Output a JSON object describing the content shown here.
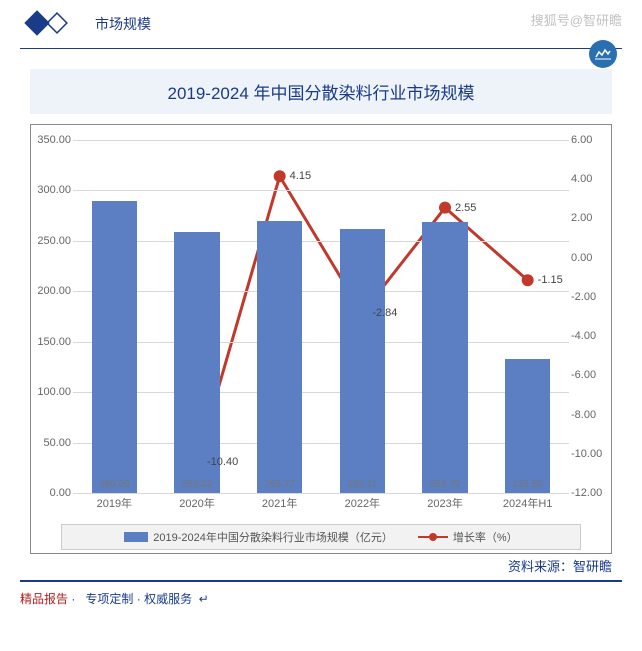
{
  "header": {
    "title": "市场规模",
    "watermark": "搜狐号@智研瞻"
  },
  "chart": {
    "type": "bar+line",
    "title": "2019-2024 年中国分散染料行业市场规模",
    "categories": [
      "2019年",
      "2020年",
      "2021年",
      "2022年",
      "2023年",
      "2024年H1"
    ],
    "bars": {
      "values": [
        289.09,
        259.02,
        269.77,
        262.11,
        268.79,
        132.85
      ],
      "color": "#5b7fc2",
      "width_ratio": 0.55,
      "legend": "2019-2024年中国分散染料行业市场规模（亿元）"
    },
    "line": {
      "values": [
        null,
        -10.4,
        4.15,
        -2.84,
        2.55,
        -1.15
      ],
      "color": "#c0392b",
      "marker_color": "#c0392b",
      "marker_size": 6,
      "line_width": 3,
      "legend": "增长率（%）"
    },
    "y_left": {
      "min": 0,
      "max": 350,
      "step": 50,
      "label_fontsize": 11
    },
    "y_right": {
      "min": -12,
      "max": 6,
      "step": 2,
      "label_fontsize": 11
    },
    "grid_color": "#d8d8d8",
    "background": "#ffffff",
    "source": "资料来源：智研瞻"
  },
  "footer": {
    "text1": "精品报告",
    "text2": "专项定制",
    "text3": "权威服务",
    "sep": "·"
  }
}
